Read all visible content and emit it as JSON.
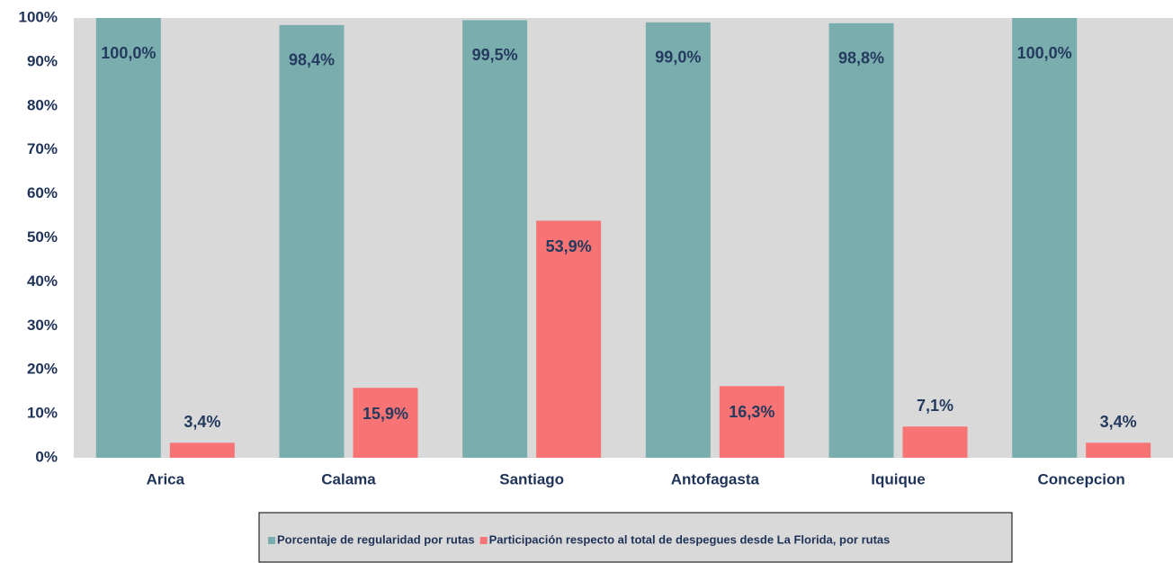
{
  "chart_data": {
    "type": "bar",
    "categories": [
      "Arica",
      "Calama",
      "Santiago",
      "Antofagasta",
      "Iquique",
      "Concepcion"
    ],
    "series": [
      {
        "name": "Porcentaje de regularidad por rutas",
        "color": "#7aaeae",
        "values": [
          100.0,
          98.4,
          99.5,
          99.0,
          98.8,
          100.0
        ],
        "value_labels": [
          "100,0%",
          "98,4%",
          "99,5%",
          "99,0%",
          "98,8%",
          "100,0%"
        ]
      },
      {
        "name": "Participación respecto al total de despegues desde La Florida, por rutas",
        "color": "#f87373",
        "values": [
          3.4,
          15.9,
          53.9,
          16.3,
          7.1,
          3.4
        ],
        "value_labels": [
          "3,4%",
          "15,9%",
          "53,9%",
          "16,3%",
          "7,1%",
          "3,4%"
        ]
      }
    ],
    "ylim": [
      0,
      100
    ],
    "yticks": [
      {
        "value": 0,
        "label": "0%"
      },
      {
        "value": 10,
        "label": "10%"
      },
      {
        "value": 20,
        "label": "20%"
      },
      {
        "value": 30,
        "label": "30%"
      },
      {
        "value": 40,
        "label": "40%"
      },
      {
        "value": 50,
        "label": "50%"
      },
      {
        "value": 60,
        "label": "60%"
      },
      {
        "value": 70,
        "label": "70%"
      },
      {
        "value": 80,
        "label": "80%"
      },
      {
        "value": 90,
        "label": "90%"
      },
      {
        "value": 100,
        "label": "100%"
      }
    ],
    "plot_background": "#d9d9d9"
  }
}
